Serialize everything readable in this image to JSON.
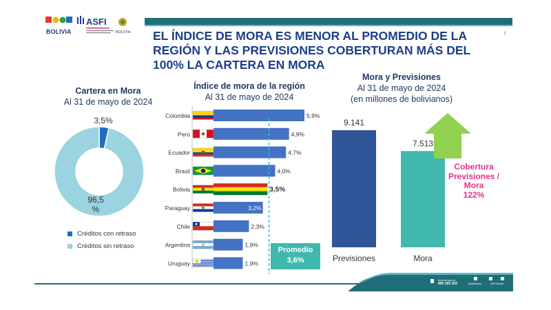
{
  "header": {
    "title": "EL ÍNDICE DE MORA ES MENOR AL PROMEDIO DE LA REGIÓN Y LAS PREVISIONES COBERTURAN MÁS DEL 100% LA CARTERA EN MORA",
    "page_number": "7",
    "logos": {
      "left": "BOLIVIA",
      "center": "ASFI",
      "right": "BOLIVIA"
    }
  },
  "colors": {
    "navy": "#1f3864",
    "teal": "#41b8ad",
    "bar_blue": "#4472c4",
    "light_blue": "#9bd3e0",
    "pink": "#e4318b",
    "green": "#92d050",
    "dashed": "#2ec3d1"
  },
  "footer": {
    "phone": "800 103 103",
    "web": "www.asfi.gob.bo",
    "social1": "@asfibolivia",
    "social2": "ASFI Bolivia"
  },
  "chart_data": [
    {
      "type": "pie",
      "title": "Cartera en Mora",
      "subtitle": "Al 31 de mayo de 2024",
      "labels": [
        "Créditos con retraso",
        "Créditos sin retraso"
      ],
      "values": [
        3.5,
        96.5
      ],
      "data_labels": [
        "3,5%",
        "96,5 %"
      ],
      "colors": [
        "#1f6fbe",
        "#9bd3e0"
      ]
    },
    {
      "type": "bar",
      "orientation": "horizontal",
      "title": "Índice de mora de la región",
      "subtitle": "Al 31 de mayo de 2024",
      "categories": [
        "Colombia",
        "Perú",
        "Ecuador",
        "Brasil",
        "Bolivia",
        "Paraguay",
        "Chile",
        "Argentina",
        "Uruguay"
      ],
      "values": [
        5.9,
        4.9,
        4.7,
        4.0,
        3.5,
        3.2,
        2.3,
        1.9,
        1.9
      ],
      "data_labels": [
        "5,9%",
        "4,9%",
        "4,7%",
        "4,0%",
        "3,5%",
        "3,2%",
        "2,3%",
        "1,9%",
        "1,9%"
      ],
      "highlight": "Bolivia",
      "average": {
        "value": 3.6,
        "label": "Promedio",
        "value_label": "3,6%"
      },
      "xlim": [
        0,
        6.5
      ]
    },
    {
      "type": "bar",
      "title": "Mora y Previsiones",
      "subtitle": "Al 31 de mayo de 2024",
      "subtitle2": "(en millones de bolivianos)",
      "categories": [
        "Previsiones",
        "Mora"
      ],
      "values": [
        9141,
        7513
      ],
      "data_labels": [
        "9.141",
        "7.513"
      ],
      "colors": [
        "#2f5597",
        "#41b8ad"
      ],
      "ylim": [
        0,
        10500
      ],
      "annotation": {
        "line1": "Cobertura",
        "line2": "Previsiones /",
        "line3": "Mora",
        "line4": "122%"
      }
    }
  ]
}
